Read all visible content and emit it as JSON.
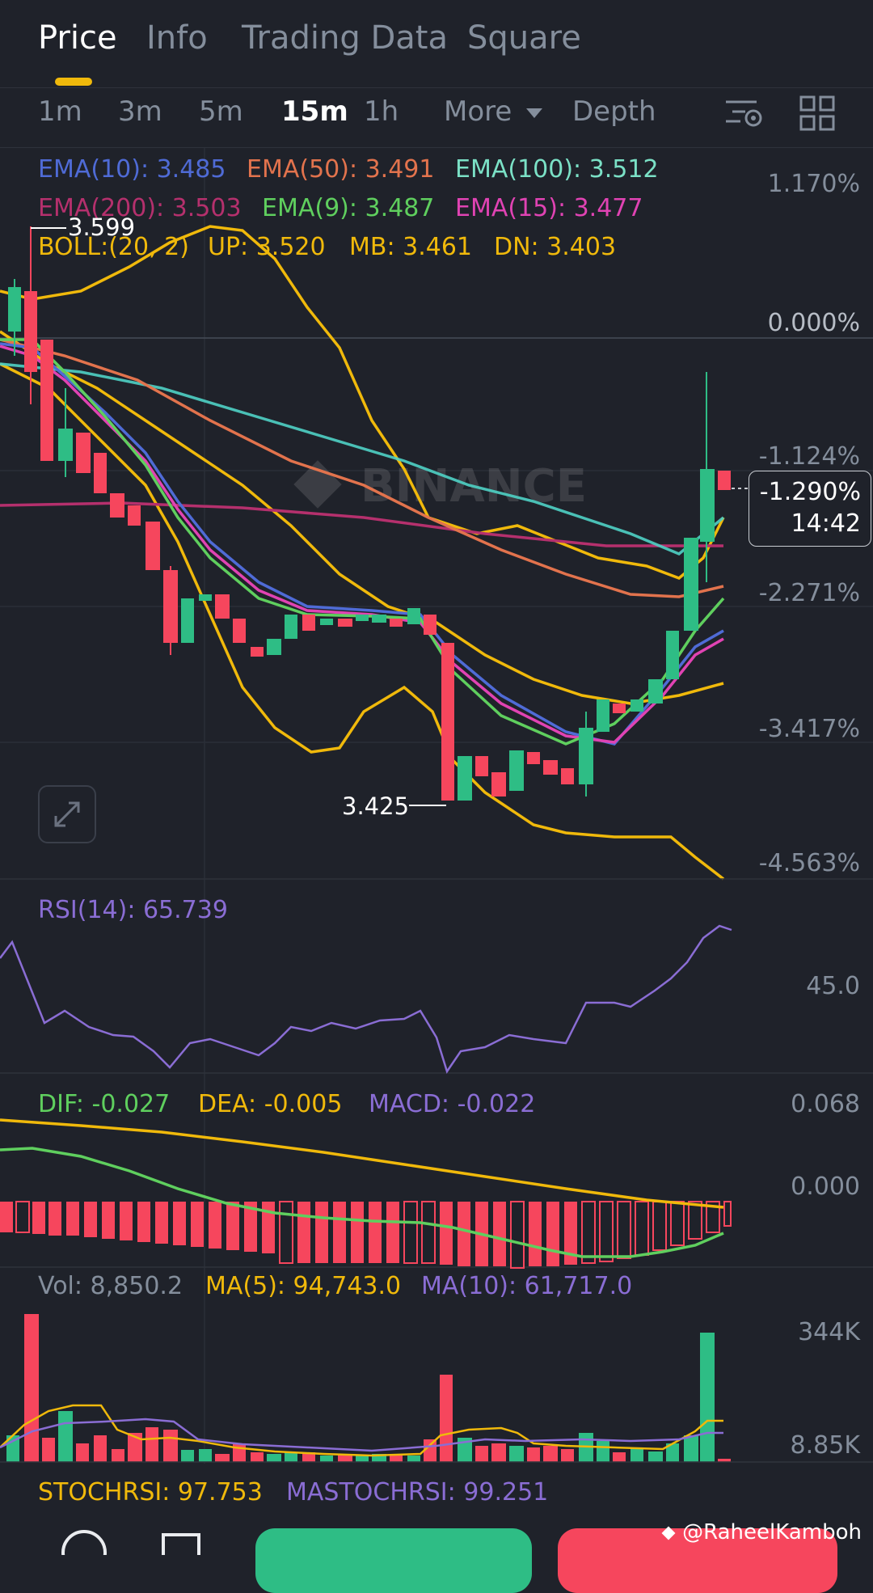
{
  "tabs": [
    "Price",
    "Info",
    "Trading Data",
    "Square"
  ],
  "intervals": [
    "1m",
    "3m",
    "5m",
    "15m",
    "1h",
    "More",
    "Depth"
  ],
  "ema_legend": {
    "ema10": "EMA(10): 3.485",
    "ema50": "EMA(50): 3.491",
    "ema100": "EMA(100): 3.512",
    "ema200": "EMA(200): 3.503",
    "ema9": "EMA(9): 3.487",
    "ema15": "EMA(15): 3.477"
  },
  "boll_legend": {
    "boll": "BOLL:(20, 2)",
    "up": "UP: 3.520",
    "mb": "MB: 3.461",
    "dn": "DN: 3.403"
  },
  "price_axis": [
    "1.170%",
    "0.000%",
    "-1.124%",
    "-2.271%",
    "-3.417%",
    "-4.563%"
  ],
  "high_label": "3.599",
  "low_label": "3.425",
  "current_price": {
    "change": "-1.290%",
    "countdown": "14:42"
  },
  "watermark": "BINANCE",
  "rsi": {
    "label": "RSI(14): 65.739",
    "axis": "45.0"
  },
  "macd": {
    "dif": "DIF: -0.027",
    "dea": "DEA: -0.005",
    "macd": "MACD: -0.022",
    "axis_top": "0.068",
    "axis_mid": "0.000"
  },
  "volume": {
    "vol": "Vol: 8,850.2",
    "ma5": "MA(5): 94,743.0",
    "ma10": "MA(10): 61,717.0",
    "axis_top": "344K",
    "axis_bottom": "8.85K"
  },
  "stochrsi": {
    "stoch": "STOCHRSI: 97.753",
    "mastoch": "MASTOCHRSI: 99.251"
  },
  "credit": "@RaheelKamboh",
  "colors": {
    "up": "#2ebd85",
    "down": "#f6465d",
    "accent": "#f0b90b",
    "background": "#1f222a"
  }
}
